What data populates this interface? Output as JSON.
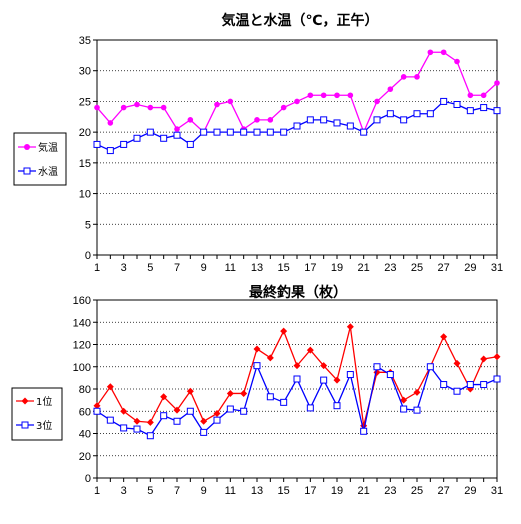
{
  "chart_data": [
    {
      "type": "line",
      "title": "気温と水温（℃，正午）",
      "xlabel": "",
      "ylabel": "",
      "x": [
        1,
        2,
        3,
        4,
        5,
        6,
        7,
        8,
        9,
        10,
        11,
        12,
        13,
        14,
        15,
        16,
        17,
        18,
        19,
        20,
        21,
        22,
        23,
        24,
        25,
        26,
        27,
        28,
        29,
        30,
        31
      ],
      "x_tick_labels": [
        "1",
        "3",
        "5",
        "7",
        "9",
        "11",
        "13",
        "15",
        "17",
        "19",
        "21",
        "23",
        "25",
        "27",
        "29",
        "31"
      ],
      "xlim": [
        1,
        31
      ],
      "ylim": [
        0,
        35
      ],
      "y_ticks": [
        0,
        5,
        10,
        15,
        20,
        25,
        30,
        35
      ],
      "grid": "horizontal-dotted",
      "legend": "left",
      "series": [
        {
          "name": "気温",
          "color": "#ff00ff",
          "marker": "filled-circle",
          "values": [
            24,
            21.5,
            24,
            24.5,
            24,
            24,
            20.5,
            22,
            20,
            24.5,
            25,
            20.5,
            22,
            22,
            24,
            25,
            26,
            26,
            26,
            26,
            20,
            25,
            27,
            29,
            29,
            33,
            33,
            31.5,
            26,
            26,
            28
          ]
        },
        {
          "name": "水温",
          "color": "#0000ff",
          "marker": "open-square",
          "values": [
            18,
            17,
            18,
            19,
            20,
            19,
            19.5,
            18,
            20,
            20,
            20,
            20,
            20,
            20,
            20,
            21,
            22,
            22,
            21.5,
            21,
            20,
            22,
            23,
            22,
            23,
            23,
            25,
            24.5,
            23.5,
            24,
            23.5
          ]
        }
      ]
    },
    {
      "type": "line",
      "title": "最終釣果（枚）",
      "xlabel": "",
      "ylabel": "",
      "x": [
        1,
        2,
        3,
        4,
        5,
        6,
        7,
        8,
        9,
        10,
        11,
        12,
        13,
        14,
        15,
        16,
        17,
        18,
        19,
        20,
        21,
        22,
        23,
        24,
        25,
        26,
        27,
        28,
        29,
        30,
        31
      ],
      "x_tick_labels": [
        "1",
        "3",
        "5",
        "7",
        "9",
        "11",
        "13",
        "15",
        "17",
        "19",
        "21",
        "23",
        "25",
        "27",
        "29",
        "31"
      ],
      "xlim": [
        1,
        31
      ],
      "ylim": [
        0,
        160
      ],
      "y_ticks": [
        0,
        20,
        40,
        60,
        80,
        100,
        120,
        140,
        160
      ],
      "grid": "horizontal-dotted",
      "legend": "left",
      "series": [
        {
          "name": "1位",
          "color": "#ff0000",
          "marker": "filled-diamond",
          "values": [
            65,
            82,
            60,
            51,
            50,
            73,
            61,
            78,
            51,
            58,
            76,
            76,
            116,
            108,
            132,
            101,
            115,
            101,
            88,
            136,
            47,
            95,
            95,
            70,
            77,
            100,
            127,
            103,
            80,
            107,
            109
          ]
        },
        {
          "name": "3位",
          "color": "#0000ff",
          "marker": "open-square",
          "values": [
            60,
            52,
            45,
            44,
            38,
            56,
            51,
            60,
            41,
            52,
            62,
            60,
            101,
            73,
            68,
            89,
            63,
            88,
            65,
            93,
            42,
            100,
            93,
            62,
            61,
            100,
            84,
            78,
            84,
            84,
            89
          ]
        }
      ]
    }
  ]
}
